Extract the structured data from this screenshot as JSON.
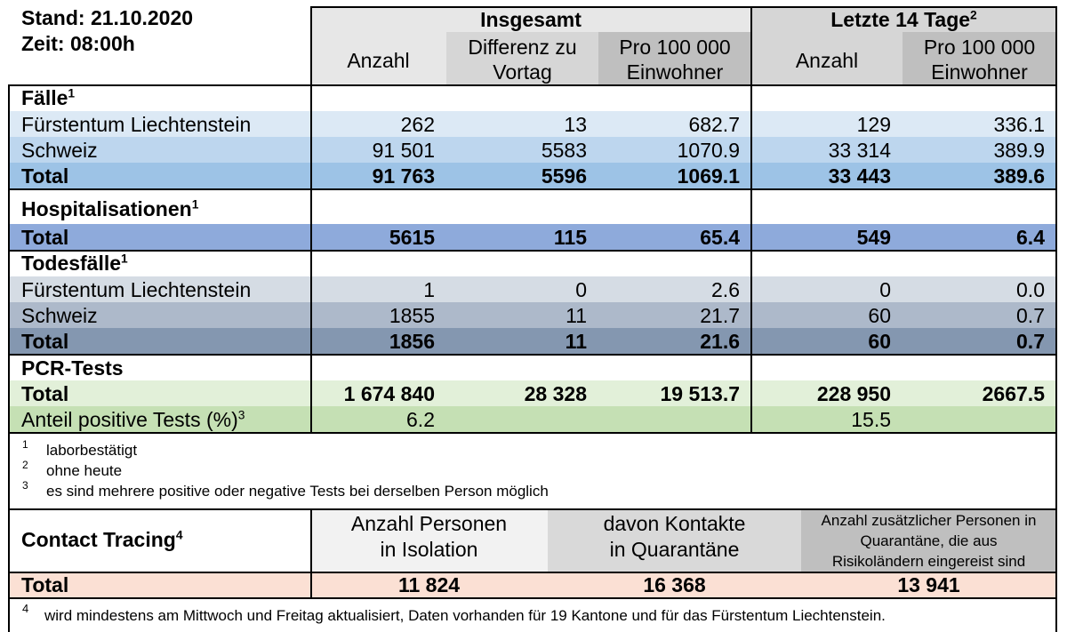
{
  "header": {
    "stand": "Stand: 21.10.2020",
    "zeit": "Zeit: 08:00h",
    "insgesamt": "Insgesamt",
    "letzte14_label": "Letzte 14 Tage",
    "letzte14_sup": "2",
    "col_anzahl": "Anzahl",
    "col_diff_1": "Differenz zu",
    "col_diff_2": "Vortag",
    "col_pro_1": "Pro 100 000",
    "col_pro_2": "Einwohner",
    "col_anzahl14": "Anzahl",
    "col_pro14_1": "Pro 100 000",
    "col_pro14_2": "Einwohner"
  },
  "faelle": {
    "title": "Fälle",
    "sup": "1",
    "rows": [
      {
        "label": "Fürstentum Liechtenstein",
        "anzahl": "262",
        "diff": "13",
        "pro": "682.7",
        "anzahl14": "129",
        "pro14": "336.1"
      },
      {
        "label": "Schweiz",
        "anzahl": "91 501",
        "diff": "5583",
        "pro": "1070.9",
        "anzahl14": "33 314",
        "pro14": "389.9"
      },
      {
        "label": "Total",
        "anzahl": "91 763",
        "diff": "5596",
        "pro": "1069.1",
        "anzahl14": "33 443",
        "pro14": "389.6"
      }
    ]
  },
  "hosp": {
    "title": "Hospitalisationen",
    "sup": "1",
    "total": {
      "label": "Total",
      "anzahl": "5615",
      "diff": "115",
      "pro": "65.4",
      "anzahl14": "549",
      "pro14": "6.4"
    }
  },
  "tod": {
    "title": "Todesfälle",
    "sup": "1",
    "rows": [
      {
        "label": "Fürstentum Liechtenstein",
        "anzahl": "1",
        "diff": "0",
        "pro": "2.6",
        "anzahl14": "0",
        "pro14": "0.0"
      },
      {
        "label": "Schweiz",
        "anzahl": "1855",
        "diff": "11",
        "pro": "21.7",
        "anzahl14": "60",
        "pro14": "0.7"
      },
      {
        "label": "Total",
        "anzahl": "1856",
        "diff": "11",
        "pro": "21.6",
        "anzahl14": "60",
        "pro14": "0.7"
      }
    ]
  },
  "pcr": {
    "title": "PCR-Tests",
    "total": {
      "label": "Total",
      "anzahl": "1 674 840",
      "diff": "28 328",
      "pro": "19 513.7",
      "anzahl14": "228 950",
      "pro14": "2667.5"
    },
    "anteil_label": "Anteil positive Tests (%)",
    "anteil_sup": "3",
    "anteil": "6.2",
    "anteil14": "15.5"
  },
  "footnotes": [
    {
      "num": "1",
      "text": "laborbestätigt"
    },
    {
      "num": "2",
      "text": "ohne heute"
    },
    {
      "num": "3",
      "text": "es sind mehrere positive oder negative Tests bei derselben Person möglich"
    }
  ],
  "contact": {
    "title": "Contact Tracing",
    "sup": "4",
    "col1_1": "Anzahl Personen",
    "col1_2": "in Isolation",
    "col2_1": "davon Kontakte",
    "col2_2": "in Quarantäne",
    "col3_1": "Anzahl zusätzlicher Personen in",
    "col3_2": "Quarantäne, die aus",
    "col3_3": "Risikoländern eingereist sind",
    "total_label": "Total",
    "total1": "11 824",
    "total2": "16 368",
    "total3": "13 941"
  },
  "footnote4": {
    "num": "4",
    "text": "wird mindestens am Mittwoch und Freitag aktualisiert, Daten vorhanden für 19 Kantone und für das Fürstentum Liechtenstein."
  },
  "colors": {
    "header_light": "#e7e7e7",
    "header_mid": "#d6d6d6",
    "header_dark": "#bfbfbf",
    "faelle_1": "#dce9f5",
    "faelle_2": "#bdd6ee",
    "faelle_total": "#9dc3e6",
    "hosp_total": "#8eaadb",
    "tod_1": "#d5dce4",
    "tod_2": "#adb9ca",
    "tod_total": "#8497b0",
    "pcr_total": "#e2f0d9",
    "pcr_anteil": "#c5e0b4",
    "contact_total": "#fbe0d4"
  }
}
